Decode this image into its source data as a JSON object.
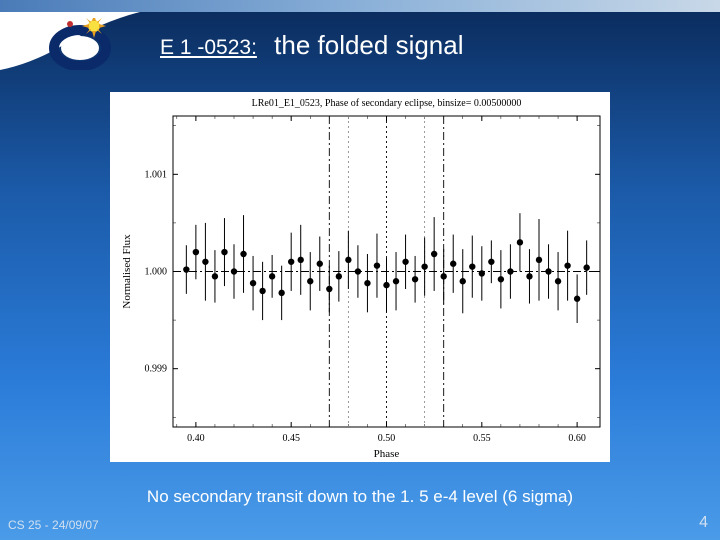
{
  "title": {
    "prefix": "E 1 -0523:",
    "main": "the folded signal"
  },
  "caption": "No secondary transit down to the 1. 5 e-4 level  (6 sigma)",
  "footer": {
    "left": "CS 25 - 24/09/07",
    "page": "4"
  },
  "logo": {
    "outer_ring": "#0a2a6a",
    "inner": "#ffffff",
    "sun": "#f8e040",
    "sun_petals": "#e8a020",
    "dot": "#c03030"
  },
  "chart": {
    "title_text": "LRe01_E1_0523, Phase of secondary eclipse, binsize=  0.00500000",
    "xlabel": "Phase",
    "ylabel": "Normalised Flux",
    "xlim": [
      0.388,
      0.612
    ],
    "ylim": [
      0.9984,
      1.0016
    ],
    "xticks": [
      0.4,
      0.45,
      0.5,
      0.55,
      0.6
    ],
    "xtick_labels": [
      "0.40",
      "0.45",
      "0.50",
      "0.55",
      "0.60"
    ],
    "yticks": [
      0.999,
      1.0,
      1.001
    ],
    "ytick_labels": [
      "0.999",
      "1.000",
      "1.001"
    ],
    "bg": "#ffffff",
    "axis_color": "#000000",
    "vlines": {
      "solid": [
        0.5
      ],
      "dashdot": [
        0.47,
        0.53
      ],
      "dot": [
        0.48,
        0.52
      ],
      "color_solid": "#000000",
      "color_dashdot": "#000000",
      "color_dot": "#808080"
    },
    "hline": {
      "y": 1.0,
      "style": "dashdot",
      "color": "#000000"
    },
    "marker": {
      "shape": "circle",
      "size": 3.2,
      "color": "#000000"
    },
    "errorbar": {
      "width": 1.0,
      "cap": 0,
      "color": "#000000"
    },
    "points": [
      {
        "x": 0.395,
        "y": 1.00002,
        "e": 0.00025
      },
      {
        "x": 0.4,
        "y": 1.0002,
        "e": 0.00028
      },
      {
        "x": 0.405,
        "y": 1.0001,
        "e": 0.0004
      },
      {
        "x": 0.41,
        "y": 0.99995,
        "e": 0.00027
      },
      {
        "x": 0.415,
        "y": 1.0002,
        "e": 0.00035
      },
      {
        "x": 0.42,
        "y": 1.0,
        "e": 0.00028
      },
      {
        "x": 0.425,
        "y": 1.00018,
        "e": 0.0004
      },
      {
        "x": 0.43,
        "y": 0.99988,
        "e": 0.00028
      },
      {
        "x": 0.435,
        "y": 0.9998,
        "e": 0.0003
      },
      {
        "x": 0.44,
        "y": 0.99995,
        "e": 0.00022
      },
      {
        "x": 0.445,
        "y": 0.99978,
        "e": 0.00028
      },
      {
        "x": 0.45,
        "y": 1.0001,
        "e": 0.0003
      },
      {
        "x": 0.455,
        "y": 1.00012,
        "e": 0.00036
      },
      {
        "x": 0.46,
        "y": 0.9999,
        "e": 0.0003
      },
      {
        "x": 0.465,
        "y": 1.00008,
        "e": 0.00028
      },
      {
        "x": 0.47,
        "y": 0.99982,
        "e": 0.00024
      },
      {
        "x": 0.475,
        "y": 0.99995,
        "e": 0.00026
      },
      {
        "x": 0.48,
        "y": 1.00012,
        "e": 0.0003
      },
      {
        "x": 0.485,
        "y": 1.0,
        "e": 0.00027
      },
      {
        "x": 0.49,
        "y": 0.99988,
        "e": 0.0003
      },
      {
        "x": 0.495,
        "y": 1.00006,
        "e": 0.00033
      },
      {
        "x": 0.5,
        "y": 0.99986,
        "e": 0.00028
      },
      {
        "x": 0.505,
        "y": 0.9999,
        "e": 0.0003
      },
      {
        "x": 0.51,
        "y": 1.0001,
        "e": 0.00028
      },
      {
        "x": 0.515,
        "y": 0.99992,
        "e": 0.00024
      },
      {
        "x": 0.52,
        "y": 1.00005,
        "e": 0.0003
      },
      {
        "x": 0.525,
        "y": 1.00018,
        "e": 0.00038
      },
      {
        "x": 0.53,
        "y": 0.99995,
        "e": 0.00028
      },
      {
        "x": 0.535,
        "y": 1.00008,
        "e": 0.0003
      },
      {
        "x": 0.54,
        "y": 0.9999,
        "e": 0.00033
      },
      {
        "x": 0.545,
        "y": 1.00005,
        "e": 0.00032
      },
      {
        "x": 0.55,
        "y": 0.99998,
        "e": 0.00028
      },
      {
        "x": 0.555,
        "y": 1.0001,
        "e": 0.00022
      },
      {
        "x": 0.56,
        "y": 0.99992,
        "e": 0.0003
      },
      {
        "x": 0.565,
        "y": 1.0,
        "e": 0.00028
      },
      {
        "x": 0.57,
        "y": 1.0003,
        "e": 0.0003
      },
      {
        "x": 0.575,
        "y": 0.99995,
        "e": 0.00028
      },
      {
        "x": 0.58,
        "y": 1.00012,
        "e": 0.00042
      },
      {
        "x": 0.585,
        "y": 1.0,
        "e": 0.00028
      },
      {
        "x": 0.59,
        "y": 0.9999,
        "e": 0.0003
      },
      {
        "x": 0.595,
        "y": 1.00006,
        "e": 0.00036
      },
      {
        "x": 0.6,
        "y": 0.99972,
        "e": 0.00025
      },
      {
        "x": 0.605,
        "y": 1.00004,
        "e": 0.00028
      }
    ]
  }
}
